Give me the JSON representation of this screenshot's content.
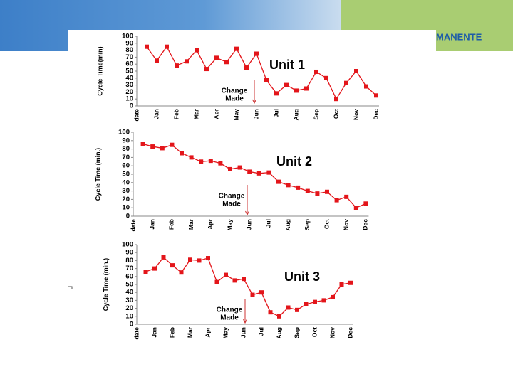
{
  "logo": "MANENTE",
  "chart_data": [
    {
      "type": "line",
      "title": "Unit 1",
      "y_label": "Cycle Time(min)",
      "annotation": [
        "Change",
        "Made"
      ],
      "color": "#e3151a",
      "categories": [
        "date",
        null,
        "Jan",
        null,
        "Feb",
        null,
        "Mar",
        null,
        "Apr",
        null,
        "May",
        null,
        "Jun",
        null,
        "Jul",
        null,
        "Aug",
        null,
        "Sep",
        null,
        "Oct",
        null,
        "Nov",
        null,
        "Dec"
      ],
      "values": [
        null,
        85,
        65,
        85,
        58,
        64,
        80,
        53,
        69,
        63,
        82,
        55,
        75,
        37,
        18,
        30,
        22,
        25,
        49,
        40,
        10,
        33,
        50,
        28,
        15
      ],
      "ylim": [
        0,
        100
      ],
      "yticks": [
        0,
        10,
        20,
        30,
        40,
        50,
        60,
        70,
        80,
        90,
        100
      ]
    },
    {
      "type": "line",
      "title": "Unit 2",
      "y_label": "Cycle Time (min.)",
      "annotation": [
        "Change",
        "Made"
      ],
      "color": "#e3151a",
      "categories": [
        "date",
        null,
        "Jan",
        null,
        "Feb",
        null,
        "Mar",
        null,
        "Apr",
        null,
        "May",
        null,
        "Jun",
        null,
        "Jul",
        null,
        "Aug",
        null,
        "Sep",
        null,
        "Oct",
        null,
        "Nov",
        null,
        "Dec"
      ],
      "values": [
        null,
        86,
        83,
        81,
        85,
        75,
        70,
        65,
        66,
        63,
        56,
        58,
        53,
        51,
        52,
        41,
        37,
        34,
        30,
        27,
        29,
        19,
        23,
        10,
        15
      ],
      "ylim": [
        0,
        100
      ],
      "yticks": [
        0,
        10,
        20,
        30,
        40,
        50,
        60,
        70,
        80,
        90,
        100
      ]
    },
    {
      "type": "line",
      "title": "Unit 3",
      "y_label": "Cycle Time (min.)",
      "annotation": [
        "Change",
        "Made"
      ],
      "color": "#e3151a",
      "categories": [
        "date",
        null,
        "Jan",
        null,
        "Feb",
        null,
        "Mar",
        null,
        "Apr",
        null,
        "May",
        null,
        "Jun",
        null,
        "Jul",
        null,
        "Aug",
        null,
        "Sep",
        null,
        "Oct",
        null,
        "Nov",
        null,
        "Dec"
      ],
      "values": [
        null,
        66,
        70,
        84,
        74,
        65,
        81,
        80,
        83,
        53,
        62,
        55,
        57,
        37,
        40,
        15,
        10,
        21,
        18,
        25,
        28,
        30,
        34,
        50,
        52
      ],
      "ylim": [
        0,
        100
      ],
      "yticks": [
        0,
        10,
        20,
        30,
        40,
        50,
        60,
        70,
        80,
        90,
        100
      ]
    }
  ]
}
